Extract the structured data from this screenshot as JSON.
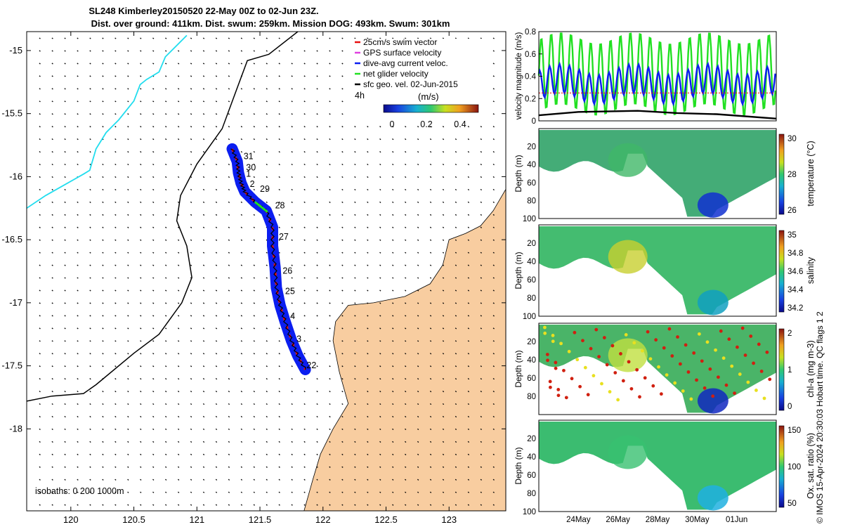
{
  "title": {
    "line1": "SL248 Kimberley20150520 22-May 00Z to 02-Jun 23Z.",
    "line2": "Dist. over ground: 411km. Dist. swum: 259km. Mission DOG: 493km. Swum: 301km"
  },
  "credit": "© IMOS 15-Apr-2024 20:30:03 Hobart time. QC flags 1  2",
  "colors": {
    "land": "#F8CDA0",
    "track_blue": "#0B1EF0",
    "swim_red": "#E81010",
    "gps_magenta": "#E040E0",
    "net_green": "#22E022",
    "coast_cyan": "#22DDEE"
  },
  "chart_data": [
    {
      "type": "map",
      "name": "glider-track-map",
      "xlim": [
        119.65,
        123.45
      ],
      "ylim": [
        -18.65,
        -14.85
      ],
      "xticks": [
        120,
        120.5,
        121,
        121.5,
        122,
        122.5,
        123
      ],
      "xtick_labels": [
        "120",
        "120.5",
        "121",
        "121.5",
        "122",
        "122.5",
        "123"
      ],
      "yticks": [
        -15,
        -15.5,
        -16,
        -16.5,
        -17,
        -17.5,
        -18
      ],
      "ytick_labels": [
        "-15",
        "-15.5",
        "-16",
        "-16.5",
        "-17",
        "-17.5",
        "-18"
      ],
      "legend": {
        "placement": "top-right",
        "entries": [
          {
            "label": "25cm/s swim vector",
            "color": "#E81010"
          },
          {
            "label": "GPS surface velocity",
            "color": "#E040E0"
          },
          {
            "label": "dive-avg current veloc.",
            "color": "#0B1EF0"
          },
          {
            "label": "net glider velocity",
            "color": "#22E022"
          },
          {
            "label": "sfc geo. vel. 02-Jun-2015",
            "color": "#000000"
          }
        ],
        "scale_label": "4h",
        "colorbar_title": "(m/s)",
        "colorbar_ticks": [
          "0",
          "0.2",
          "0.4"
        ]
      },
      "isobaths_label": "isobaths: 0   200   1000m",
      "day_labels": [
        {
          "text": "31",
          "lon": 121.37,
          "lat": -15.86
        },
        {
          "text": "30",
          "lon": 121.39,
          "lat": -15.95
        },
        {
          "text": "1",
          "lon": 121.39,
          "lat": -16.0
        },
        {
          "text": "2",
          "lon": 121.42,
          "lat": -16.08
        },
        {
          "text": "29",
          "lon": 121.5,
          "lat": -16.12
        },
        {
          "text": "28",
          "lon": 121.62,
          "lat": -16.25
        },
        {
          "text": "27",
          "lon": 121.65,
          "lat": -16.5
        },
        {
          "text": "26",
          "lon": 121.68,
          "lat": -16.77
        },
        {
          "text": "25",
          "lon": 121.7,
          "lat": -16.93
        },
        {
          "text": "4",
          "lon": 121.74,
          "lat": -17.13
        },
        {
          "text": "3",
          "lon": 121.79,
          "lat": -17.31
        },
        {
          "text": "22",
          "lon": 121.87,
          "lat": -17.52
        }
      ],
      "track": [
        [
          121.28,
          -15.78
        ],
        [
          121.32,
          -15.88
        ],
        [
          121.33,
          -15.97
        ],
        [
          121.35,
          -16.05
        ],
        [
          121.38,
          -16.12
        ],
        [
          121.46,
          -16.2
        ],
        [
          121.55,
          -16.27
        ],
        [
          121.6,
          -16.4
        ],
        [
          121.6,
          -16.55
        ],
        [
          121.62,
          -16.72
        ],
        [
          121.63,
          -16.88
        ],
        [
          121.66,
          -17.02
        ],
        [
          121.7,
          -17.15
        ],
        [
          121.75,
          -17.3
        ],
        [
          121.8,
          -17.42
        ],
        [
          121.86,
          -17.53
        ]
      ],
      "coastline": [
        [
          119.65,
          -17.78
        ],
        [
          119.85,
          -17.74
        ],
        [
          120.1,
          -17.72
        ],
        [
          120.2,
          -17.65
        ],
        [
          120.5,
          -17.4
        ],
        [
          120.7,
          -17.25
        ],
        [
          120.88,
          -17.0
        ],
        [
          120.96,
          -16.8
        ],
        [
          120.92,
          -16.55
        ],
        [
          120.84,
          -16.35
        ],
        [
          120.87,
          -16.15
        ],
        [
          121.0,
          -15.9
        ],
        [
          121.2,
          -15.62
        ],
        [
          121.3,
          -15.35
        ],
        [
          121.4,
          -15.08
        ],
        [
          121.57,
          -15.03
        ],
        [
          121.8,
          -14.85
        ]
      ],
      "cyan_contour": [
        [
          119.65,
          -16.25
        ],
        [
          119.8,
          -16.15
        ],
        [
          120.1,
          -15.98
        ],
        [
          120.15,
          -15.95
        ],
        [
          120.2,
          -15.78
        ],
        [
          120.28,
          -15.65
        ],
        [
          120.38,
          -15.55
        ],
        [
          120.5,
          -15.4
        ],
        [
          120.55,
          -15.27
        ],
        [
          120.6,
          -15.23
        ],
        [
          120.7,
          -15.17
        ],
        [
          120.75,
          -15.05
        ],
        [
          120.92,
          -14.88
        ]
      ],
      "land": [
        [
          123.45,
          -16.1
        ],
        [
          123.35,
          -16.27
        ],
        [
          123.25,
          -16.39
        ],
        [
          123.13,
          -16.45
        ],
        [
          123.0,
          -16.5
        ],
        [
          122.95,
          -16.7
        ],
        [
          122.85,
          -16.85
        ],
        [
          122.65,
          -16.95
        ],
        [
          122.4,
          -17.0
        ],
        [
          122.2,
          -17.02
        ],
        [
          122.1,
          -17.15
        ],
        [
          122.08,
          -17.3
        ],
        [
          122.13,
          -17.55
        ],
        [
          122.2,
          -17.8
        ],
        [
          122.08,
          -18.0
        ],
        [
          121.98,
          -18.2
        ],
        [
          121.92,
          -18.4
        ],
        [
          121.85,
          -18.65
        ],
        [
          123.45,
          -18.65
        ]
      ]
    },
    {
      "type": "line",
      "name": "velocity-magnitude",
      "ylabel": "velocity magnitude (m/s)",
      "ylim": [
        0,
        0.8
      ],
      "yticks": [
        0,
        0.2,
        0.4,
        0.6,
        0.8
      ],
      "ytick_labels": [
        "0",
        "0.2",
        "0.4",
        "0.6",
        "0.8"
      ],
      "x_range_days": [
        22,
        34
      ],
      "series": [
        {
          "name": "net glider velocity",
          "color": "#22E022",
          "mean": 0.42,
          "amp": 0.33,
          "period_days": 0.5
        },
        {
          "name": "dive-avg current veloc.",
          "color": "#0B1EF0",
          "mean": 0.33,
          "amp": 0.13,
          "period_days": 0.5
        },
        {
          "name": "25cm/s swim vector",
          "color": "#E81010",
          "mean": 0.25,
          "amp": 0.0,
          "period_days": 1
        },
        {
          "name": "sfc geo. vel.",
          "color": "#000000",
          "points": [
            [
              22,
              0.05
            ],
            [
              24,
              0.08
            ],
            [
              27,
              0.09
            ],
            [
              29,
              0.07
            ],
            [
              31,
              0.06
            ],
            [
              34,
              0.02
            ]
          ]
        }
      ]
    },
    {
      "type": "heatmap",
      "name": "temperature",
      "ylabel": "Depth (m)",
      "yticks": [
        "20",
        "40",
        "60",
        "80",
        "100"
      ],
      "colorbar_label": "temperature (°C)",
      "colorbar_ticks": [
        "30",
        "28",
        "26"
      ],
      "x_range_days": [
        22,
        34
      ]
    },
    {
      "type": "heatmap",
      "name": "salinity",
      "ylabel": "Depth (m)",
      "yticks": [
        "20",
        "40",
        "60",
        "80",
        "100"
      ],
      "colorbar_label": "salinity",
      "colorbar_ticks": [
        "35",
        "34.8",
        "34.6",
        "34.4",
        "34.2"
      ],
      "x_range_days": [
        22,
        34
      ]
    },
    {
      "type": "heatmap",
      "name": "chl-a",
      "ylabel": "Depth (m)",
      "yticks": [
        "20",
        "40",
        "60",
        "80"
      ],
      "colorbar_label": "chl-a (mg m-3)",
      "colorbar_ticks": [
        "2",
        "1",
        "0"
      ],
      "x_range_days": [
        22,
        34
      ]
    },
    {
      "type": "heatmap",
      "name": "oxygen-saturation",
      "ylabel": "Depth (m)",
      "yticks": [
        "20",
        "40",
        "60",
        "80",
        "100"
      ],
      "colorbar_label": "Ox. sat. ratio (%)",
      "colorbar_ticks": [
        "150",
        "100",
        "50"
      ],
      "x_range_days": [
        22,
        34
      ],
      "xtick_labels": [
        "24May",
        "26May",
        "28May",
        "30May",
        "01Jun"
      ],
      "xtick_days": [
        24,
        26,
        28,
        30,
        32
      ]
    }
  ]
}
